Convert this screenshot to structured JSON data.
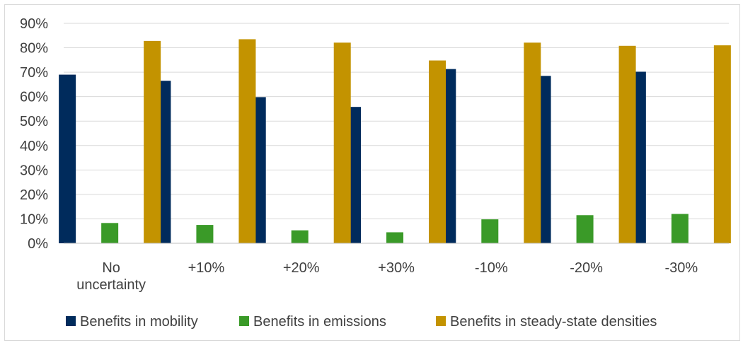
{
  "chart_data": {
    "type": "bar",
    "title": "",
    "xlabel": "",
    "ylabel": "",
    "categories": [
      [
        "No",
        "uncertainty"
      ],
      [
        "+10%"
      ],
      [
        "+20%"
      ],
      [
        "+30%"
      ],
      [
        "-10%"
      ],
      [
        "-20%"
      ],
      [
        "-30%"
      ]
    ],
    "series": [
      {
        "name": "Benefits in mobility",
        "color": "#002b5c",
        "values": [
          69,
          66.5,
          59.8,
          55.8,
          71.3,
          68.5,
          70.2
        ]
      },
      {
        "name": "Benefits in emissions",
        "color": "#3a9a28",
        "values": [
          8.3,
          7.5,
          5.3,
          4.5,
          9.8,
          11.5,
          12
        ]
      },
      {
        "name": "Benefits in steady-state densities",
        "color": "#c39300",
        "values": [
          82.8,
          83.5,
          82.1,
          74.8,
          82.1,
          80.8,
          81
        ]
      }
    ],
    "ylim": [
      0,
      90
    ],
    "yticks": [
      "0%",
      "10%",
      "20%",
      "30%",
      "40%",
      "50%",
      "60%",
      "70%",
      "80%",
      "90%"
    ],
    "grid": true,
    "legend_position": "bottom"
  }
}
